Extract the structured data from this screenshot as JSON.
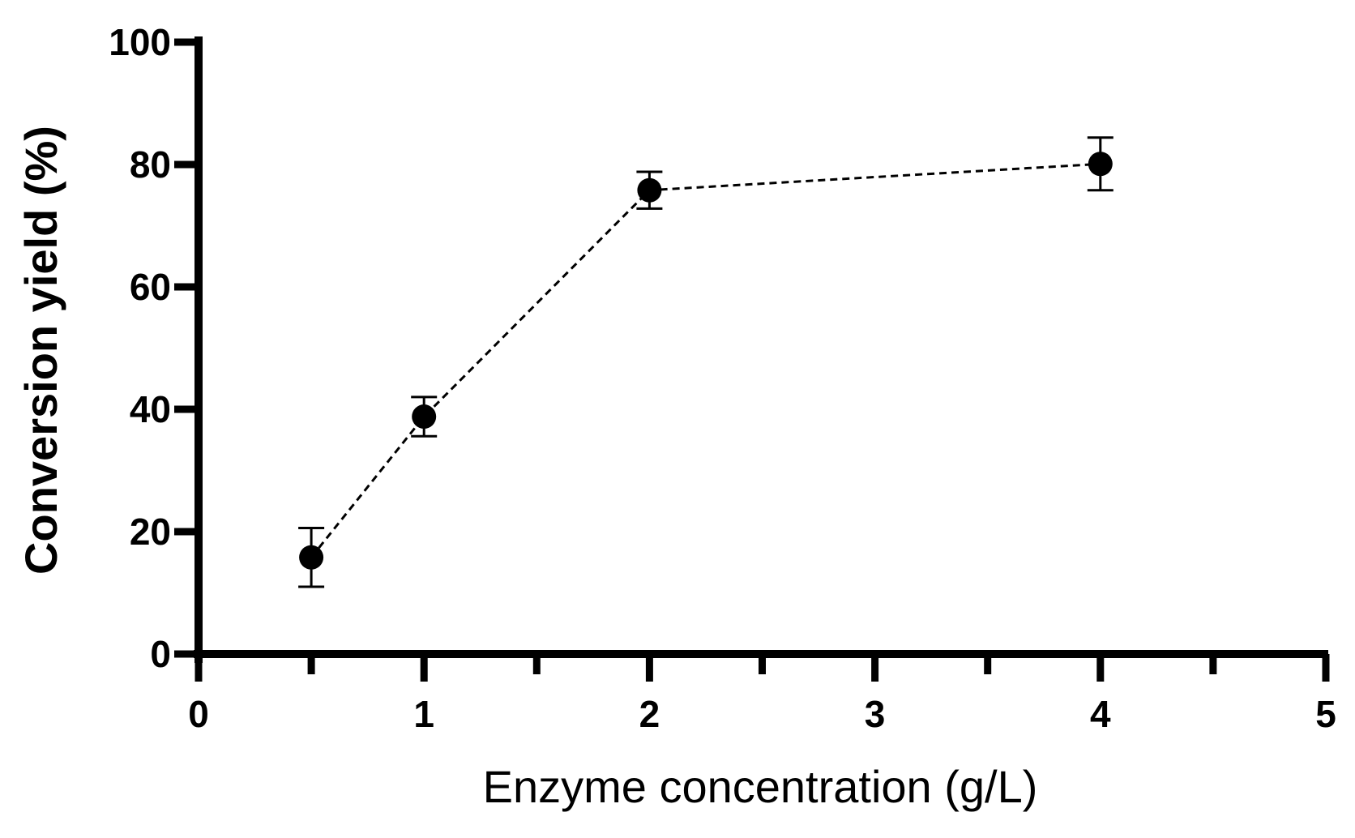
{
  "chart_data": {
    "type": "scatter",
    "title": "",
    "xlabel": "Enzyme concentration (g/L)",
    "ylabel": "Conversion yield (%)",
    "xlim": [
      0,
      5
    ],
    "ylim": [
      0,
      100
    ],
    "x_ticks": [
      "0",
      "1",
      "2",
      "3",
      "4",
      "5"
    ],
    "x_minor_ticks": [
      0.5,
      1.5,
      2.5,
      3.5,
      4.5
    ],
    "y_ticks": [
      "0",
      "20",
      "40",
      "60",
      "80",
      "100"
    ],
    "grid": false,
    "line_style": "dashed",
    "series": [
      {
        "x": [
          0.5,
          1,
          2,
          4
        ],
        "y": [
          15.8,
          38.8,
          75.8,
          80.1
        ],
        "error": [
          4.8,
          3.2,
          3.0,
          4.3
        ]
      }
    ],
    "colors": {
      "marker": "#000000",
      "line": "#000000",
      "axis": "#000000"
    }
  }
}
